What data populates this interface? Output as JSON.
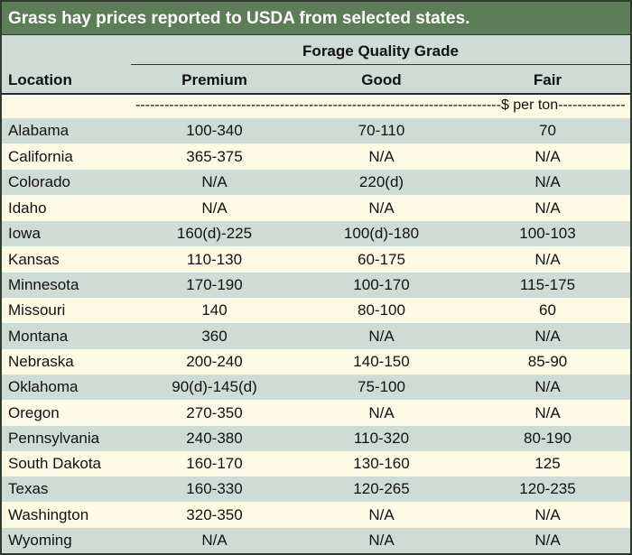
{
  "title": "Grass hay prices reported to USDA from selected states.",
  "header": {
    "group_label": "Forage Quality Grade",
    "location": "Location",
    "premium": "Premium",
    "good": "Good",
    "fair": "Fair"
  },
  "units": "$ per ton",
  "rows": [
    {
      "location": "Alabama",
      "premium": "100-340",
      "good": "70-110",
      "fair": "70"
    },
    {
      "location": "California",
      "premium": "365-375",
      "good": "N/A",
      "fair": "N/A"
    },
    {
      "location": "Colorado",
      "premium": "N/A",
      "good": "220(d)",
      "fair": "N/A"
    },
    {
      "location": "Idaho",
      "premium": "N/A",
      "good": "N/A",
      "fair": "N/A"
    },
    {
      "location": "Iowa",
      "premium": "160(d)-225",
      "good": "100(d)-180",
      "fair": "100-103"
    },
    {
      "location": "Kansas",
      "premium": "110-130",
      "good": "60-175",
      "fair": "N/A"
    },
    {
      "location": "Minnesota",
      "premium": "170-190",
      "good": "100-170",
      "fair": "115-175"
    },
    {
      "location": "Missouri",
      "premium": "140",
      "good": "80-100",
      "fair": "60"
    },
    {
      "location": "Montana",
      "premium": "360",
      "good": "N/A",
      "fair": "N/A"
    },
    {
      "location": "Nebraska",
      "premium": "200-240",
      "good": "140-150",
      "fair": "85-90"
    },
    {
      "location": "Oklahoma",
      "premium": "90(d)-145(d)",
      "good": "75-100",
      "fair": "N/A"
    },
    {
      "location": "Oregon",
      "premium": "270-350",
      "good": "N/A",
      "fair": "N/A"
    },
    {
      "location": "Pennsylvania",
      "premium": "240-380",
      "good": "110-320",
      "fair": "80-190"
    },
    {
      "location": "South Dakota",
      "premium": "160-170",
      "good": "130-160",
      "fair": "125"
    },
    {
      "location": "Texas",
      "premium": "160-330",
      "good": "120-265",
      "fair": "120-235"
    },
    {
      "location": "Washington",
      "premium": "320-350",
      "good": "N/A",
      "fair": "N/A"
    },
    {
      "location": "Wyoming",
      "premium": "N/A",
      "good": "N/A",
      "fair": "N/A"
    }
  ]
}
